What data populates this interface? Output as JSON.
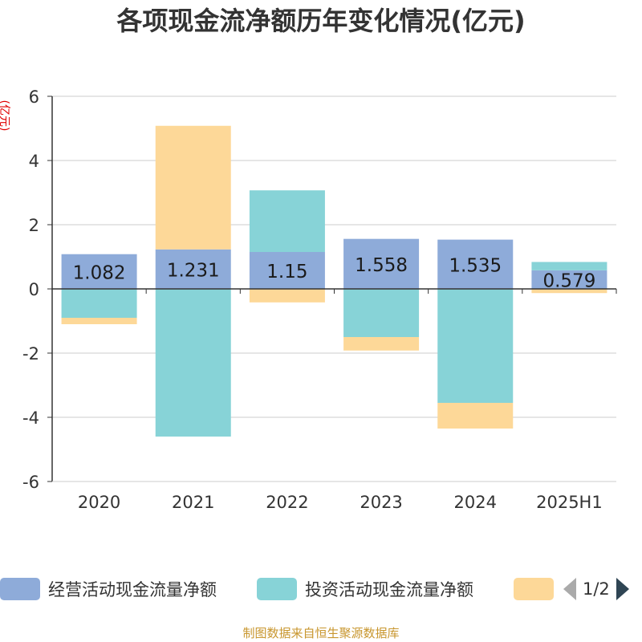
{
  "chart_data": {
    "type": "bar",
    "stacked": true,
    "title": "各项现金流净额历年变化情况(亿元)",
    "ylabel": "(亿元)",
    "categories": [
      "2020",
      "2021",
      "2022",
      "2023",
      "2024",
      "2025H1"
    ],
    "ylim": [
      -6,
      6
    ],
    "yticks": [
      6,
      4,
      2,
      0,
      -2,
      -4,
      -6
    ],
    "grid": true,
    "legend_position": "bottom",
    "series": [
      {
        "name": "经营活动现金流量净额",
        "color": "#8eabd9",
        "values": [
          1.082,
          1.231,
          1.15,
          1.558,
          1.535,
          0.579
        ],
        "labels": [
          "1.082",
          "1.231",
          "1.15",
          "1.558",
          "1.535",
          "0.579"
        ]
      },
      {
        "name": "投资活动现金流量净额",
        "color": "#87d3d7",
        "values": [
          -0.9,
          -4.6,
          1.92,
          -1.5,
          -3.55,
          0.26
        ]
      },
      {
        "name": "",
        "color": "#fdd898",
        "values": [
          -0.2,
          3.85,
          -0.42,
          -0.42,
          -0.8,
          -0.13
        ]
      }
    ]
  },
  "legend": {
    "page": "1/2"
  },
  "footer": "制图数据来自恒生聚源数据库"
}
